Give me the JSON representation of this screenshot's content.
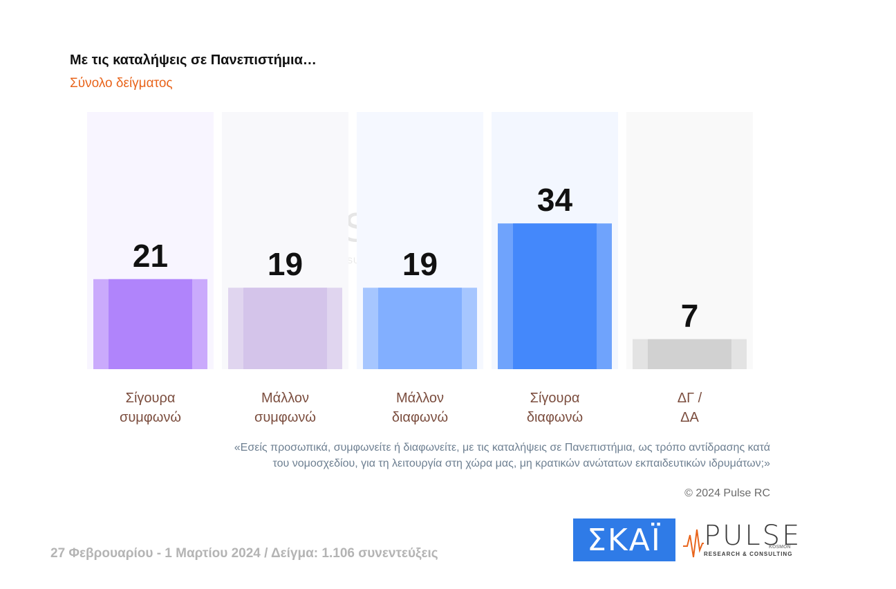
{
  "chart_data": {
    "type": "bar",
    "title": "Με τις καταλήψεις σε Πανεπιστήμια…",
    "subtitle": "Σύνολο δείγματος",
    "categories": [
      [
        "Σίγουρα",
        "συμφωνώ"
      ],
      [
        "Μάλλον",
        "συμφωνώ"
      ],
      [
        "Μάλλον",
        "διαφωνώ"
      ],
      [
        "Σίγουρα",
        "διαφωνώ"
      ],
      [
        "ΔΓ /",
        "ΔΑ"
      ]
    ],
    "values": [
      21,
      19,
      19,
      34,
      7
    ],
    "ylim": [
      0,
      60
    ],
    "grid": false,
    "legend": "none",
    "colors": {
      "bars": [
        "#b084fb",
        "#d4c4ea",
        "#82afff",
        "#4488fb",
        "#d1d1d1"
      ],
      "edges": [
        "#ca aafc",
        "#e0d5ef",
        "#a6c6ff",
        "#6fa3fc",
        "#e3e3e3"
      ],
      "backgrounds": [
        "#f8f5ff",
        "#f8f8fb",
        "#f5f8ff",
        "#f3f7ff",
        "#f9f9f9"
      ],
      "labels": "#7b4d3e",
      "values": "#111111"
    }
  },
  "question": [
    "«Εσείς προσωπικά, συμφωνείτε ή διαφωνείτε, με τις καταλήψεις σε Πανεπιστήμια, ως τρόπο αντίδρασης κατά",
    "του νομοσχεδίου, για τη λειτουργία στη χώρα μας, μη κρατικών ανώτατων εκπαιδευτικών ιδρυμάτων;»"
  ],
  "copyright": "© 2024 Pulse RC",
  "footer": "27 Φεβρουαρίου - 1 Μαρτίου 2024  /  Δείγμα:  1.106 συνεντεύξεις",
  "logos": {
    "skai": "ΣΚΑΪ",
    "pulse": "PULSE",
    "pulse_sub": "RESEARCH & CONSULTING",
    "pulse_kosmon": "KOSMON"
  }
}
